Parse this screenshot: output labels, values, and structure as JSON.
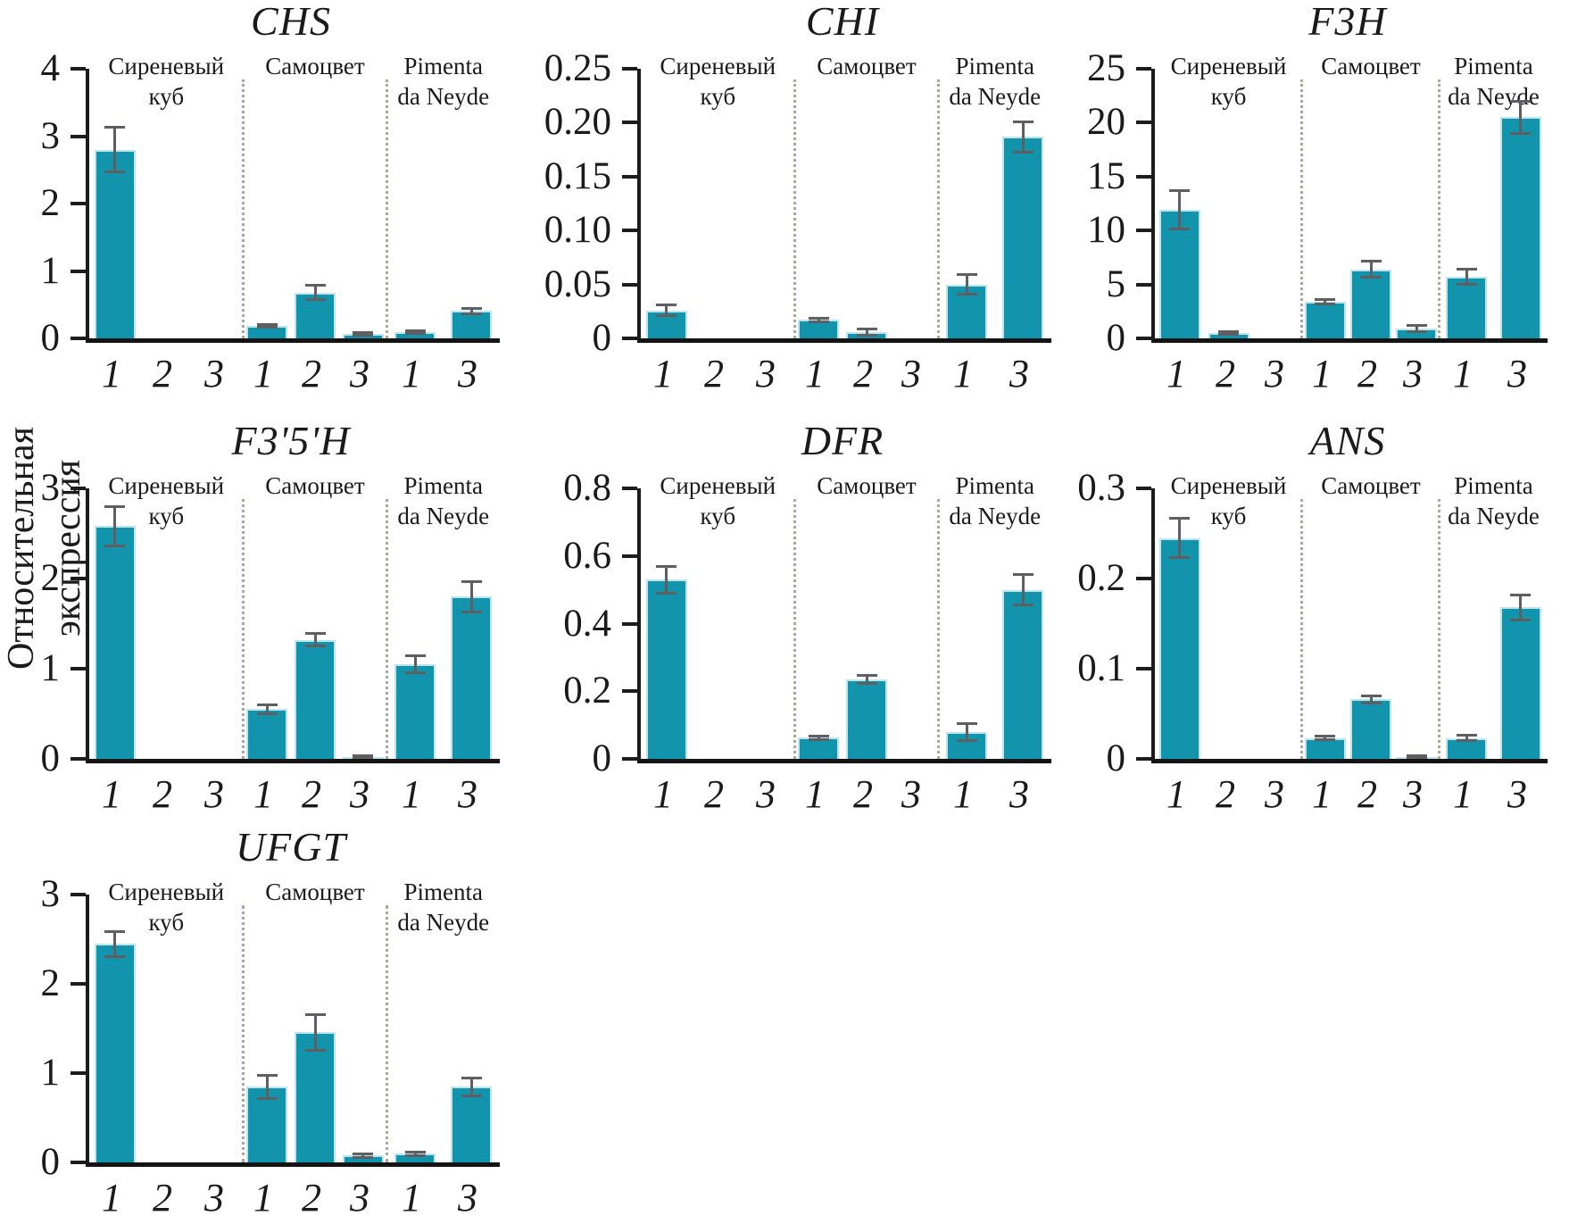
{
  "figure": {
    "ylabel": "Относительная экспрессия",
    "bar_color": "#1295ac",
    "error_color": "#5d5f63",
    "axis_color": "#1c1c1c",
    "separator_color": "#a7a99b"
  },
  "chart_data": [
    {
      "type": "bar",
      "title": "CHS",
      "ylim": [
        0,
        4
      ],
      "ytick_values": [
        0,
        1,
        2,
        3,
        4
      ],
      "ytick_labels": [
        "0",
        "1",
        "2",
        "3",
        "4"
      ],
      "groups": [
        {
          "label_lines": [
            "Сиреневый",
            "куб"
          ],
          "bars": [
            {
              "x": "1",
              "value": 2.8,
              "err": 0.33
            },
            {
              "x": "2",
              "value": 0,
              "err": 0
            },
            {
              "x": "3",
              "value": 0,
              "err": 0
            }
          ]
        },
        {
          "label_lines": [
            "Самоцвет"
          ],
          "bars": [
            {
              "x": "1",
              "value": 0.18,
              "err": 0.02
            },
            {
              "x": "2",
              "value": 0.68,
              "err": 0.11
            },
            {
              "x": "3",
              "value": 0.06,
              "err": 0.02
            }
          ]
        },
        {
          "label_lines": [
            "Pimenta",
            "da Neyde"
          ],
          "bars": [
            {
              "x": "1",
              "value": 0.09,
              "err": 0.02
            },
            {
              "x": "3",
              "value": 0.41,
              "err": 0.04
            }
          ]
        }
      ]
    },
    {
      "type": "bar",
      "title": "CHI",
      "ylim": [
        0,
        0.25
      ],
      "ytick_values": [
        0,
        0.05,
        0.1,
        0.15,
        0.2,
        0.25
      ],
      "ytick_labels": [
        "0",
        "0.05",
        "0.10",
        "0.15",
        "0.20",
        "0.25"
      ],
      "groups": [
        {
          "label_lines": [
            "Сиреневый",
            "куб"
          ],
          "bars": [
            {
              "x": "1",
              "value": 0.026,
              "err": 0.005
            },
            {
              "x": "2",
              "value": 0,
              "err": 0
            },
            {
              "x": "3",
              "value": 0,
              "err": 0
            }
          ]
        },
        {
          "label_lines": [
            "Самоцвет"
          ],
          "bars": [
            {
              "x": "1",
              "value": 0.017,
              "err": 0.002
            },
            {
              "x": "2",
              "value": 0.006,
              "err": 0.003
            },
            {
              "x": "3",
              "value": 0,
              "err": 0
            }
          ]
        },
        {
          "label_lines": [
            "Pimenta",
            "da Neyde"
          ],
          "bars": [
            {
              "x": "1",
              "value": 0.05,
              "err": 0.009
            },
            {
              "x": "3",
              "value": 0.187,
              "err": 0.014
            }
          ]
        }
      ]
    },
    {
      "type": "bar",
      "title": "F3H",
      "ylim": [
        0,
        25
      ],
      "ytick_values": [
        0,
        5,
        10,
        15,
        20,
        25
      ],
      "ytick_labels": [
        "0",
        "5",
        "10",
        "15",
        "20",
        "25"
      ],
      "groups": [
        {
          "label_lines": [
            "Сиреневый",
            "куб"
          ],
          "bars": [
            {
              "x": "1",
              "value": 11.9,
              "err": 1.8
            },
            {
              "x": "2",
              "value": 0.5,
              "err": 0.1
            },
            {
              "x": "3",
              "value": 0,
              "err": 0
            }
          ]
        },
        {
          "label_lines": [
            "Самоцвет"
          ],
          "bars": [
            {
              "x": "1",
              "value": 3.4,
              "err": 0.2
            },
            {
              "x": "2",
              "value": 6.4,
              "err": 0.75
            },
            {
              "x": "3",
              "value": 0.9,
              "err": 0.3
            }
          ]
        },
        {
          "label_lines": [
            "Pimenta",
            "da Neyde"
          ],
          "bars": [
            {
              "x": "1",
              "value": 5.7,
              "err": 0.7
            },
            {
              "x": "3",
              "value": 20.5,
              "err": 1.5
            }
          ]
        }
      ]
    },
    {
      "type": "bar",
      "title": "F3'5'H",
      "ylim": [
        0,
        3
      ],
      "ytick_values": [
        0,
        1,
        2,
        3
      ],
      "ytick_labels": [
        "0",
        "1",
        "2",
        "3"
      ],
      "groups": [
        {
          "label_lines": [
            "Сиреневый",
            "куб"
          ],
          "bars": [
            {
              "x": "1",
              "value": 2.58,
              "err": 0.22
            },
            {
              "x": "2",
              "value": 0,
              "err": 0
            },
            {
              "x": "3",
              "value": 0,
              "err": 0
            }
          ]
        },
        {
          "label_lines": [
            "Самоцвет"
          ],
          "bars": [
            {
              "x": "1",
              "value": 0.55,
              "err": 0.05
            },
            {
              "x": "2",
              "value": 1.32,
              "err": 0.07
            },
            {
              "x": "3",
              "value": 0.02,
              "err": 0.01
            }
          ]
        },
        {
          "label_lines": [
            "Pimenta",
            "da Neyde"
          ],
          "bars": [
            {
              "x": "1",
              "value": 1.05,
              "err": 0.09
            },
            {
              "x": "3",
              "value": 1.8,
              "err": 0.17
            }
          ]
        }
      ]
    },
    {
      "type": "bar",
      "title": "DFR",
      "ylim": [
        0,
        0.8
      ],
      "ytick_values": [
        0,
        0.2,
        0.4,
        0.6,
        0.8
      ],
      "ytick_labels": [
        "0",
        "0.2",
        "0.4",
        "0.6",
        "0.8"
      ],
      "groups": [
        {
          "label_lines": [
            "Сиреневый",
            "куб"
          ],
          "bars": [
            {
              "x": "1",
              "value": 0.53,
              "err": 0.04
            },
            {
              "x": "2",
              "value": 0,
              "err": 0
            },
            {
              "x": "3",
              "value": 0,
              "err": 0
            }
          ]
        },
        {
          "label_lines": [
            "Самоцвет"
          ],
          "bars": [
            {
              "x": "1",
              "value": 0.063,
              "err": 0.005
            },
            {
              "x": "2",
              "value": 0.235,
              "err": 0.013
            },
            {
              "x": "3",
              "value": 0,
              "err": 0
            }
          ]
        },
        {
          "label_lines": [
            "Pimenta",
            "da Neyde"
          ],
          "bars": [
            {
              "x": "1",
              "value": 0.078,
              "err": 0.025
            },
            {
              "x": "3",
              "value": 0.5,
              "err": 0.045
            }
          ]
        }
      ]
    },
    {
      "type": "bar",
      "title": "ANS",
      "ylim": [
        0,
        0.3
      ],
      "ytick_values": [
        0,
        0.1,
        0.2,
        0.3
      ],
      "ytick_labels": [
        "0",
        "0.1",
        "0.2",
        "0.3"
      ],
      "groups": [
        {
          "label_lines": [
            "Сиреневый",
            "куб"
          ],
          "bars": [
            {
              "x": "1",
              "value": 0.245,
              "err": 0.022
            },
            {
              "x": "2",
              "value": 0,
              "err": 0
            },
            {
              "x": "3",
              "value": 0,
              "err": 0
            }
          ]
        },
        {
          "label_lines": [
            "Самоцвет"
          ],
          "bars": [
            {
              "x": "1",
              "value": 0.023,
              "err": 0.002
            },
            {
              "x": "2",
              "value": 0.066,
              "err": 0.004
            },
            {
              "x": "3",
              "value": 0.002,
              "err": 0.001
            }
          ]
        },
        {
          "label_lines": [
            "Pimenta",
            "da Neyde"
          ],
          "bars": [
            {
              "x": "1",
              "value": 0.023,
              "err": 0.003
            },
            {
              "x": "3",
              "value": 0.168,
              "err": 0.014
            }
          ]
        }
      ]
    },
    {
      "type": "bar",
      "title": "UFGT",
      "ylim": [
        0,
        3
      ],
      "ytick_values": [
        0,
        1,
        2,
        3
      ],
      "ytick_labels": [
        "0",
        "1",
        "2",
        "3"
      ],
      "groups": [
        {
          "label_lines": [
            "Сиреневый",
            "куб"
          ],
          "bars": [
            {
              "x": "1",
              "value": 2.45,
              "err": 0.14
            },
            {
              "x": "2",
              "value": 0,
              "err": 0
            },
            {
              "x": "3",
              "value": 0,
              "err": 0
            }
          ]
        },
        {
          "label_lines": [
            "Самоцвет"
          ],
          "bars": [
            {
              "x": "1",
              "value": 0.85,
              "err": 0.13
            },
            {
              "x": "2",
              "value": 1.46,
              "err": 0.2
            },
            {
              "x": "3",
              "value": 0.08,
              "err": 0.02
            }
          ]
        },
        {
          "label_lines": [
            "Pimenta",
            "da Neyde"
          ],
          "bars": [
            {
              "x": "1",
              "value": 0.1,
              "err": 0.02
            },
            {
              "x": "3",
              "value": 0.85,
              "err": 0.1
            }
          ]
        }
      ]
    }
  ]
}
